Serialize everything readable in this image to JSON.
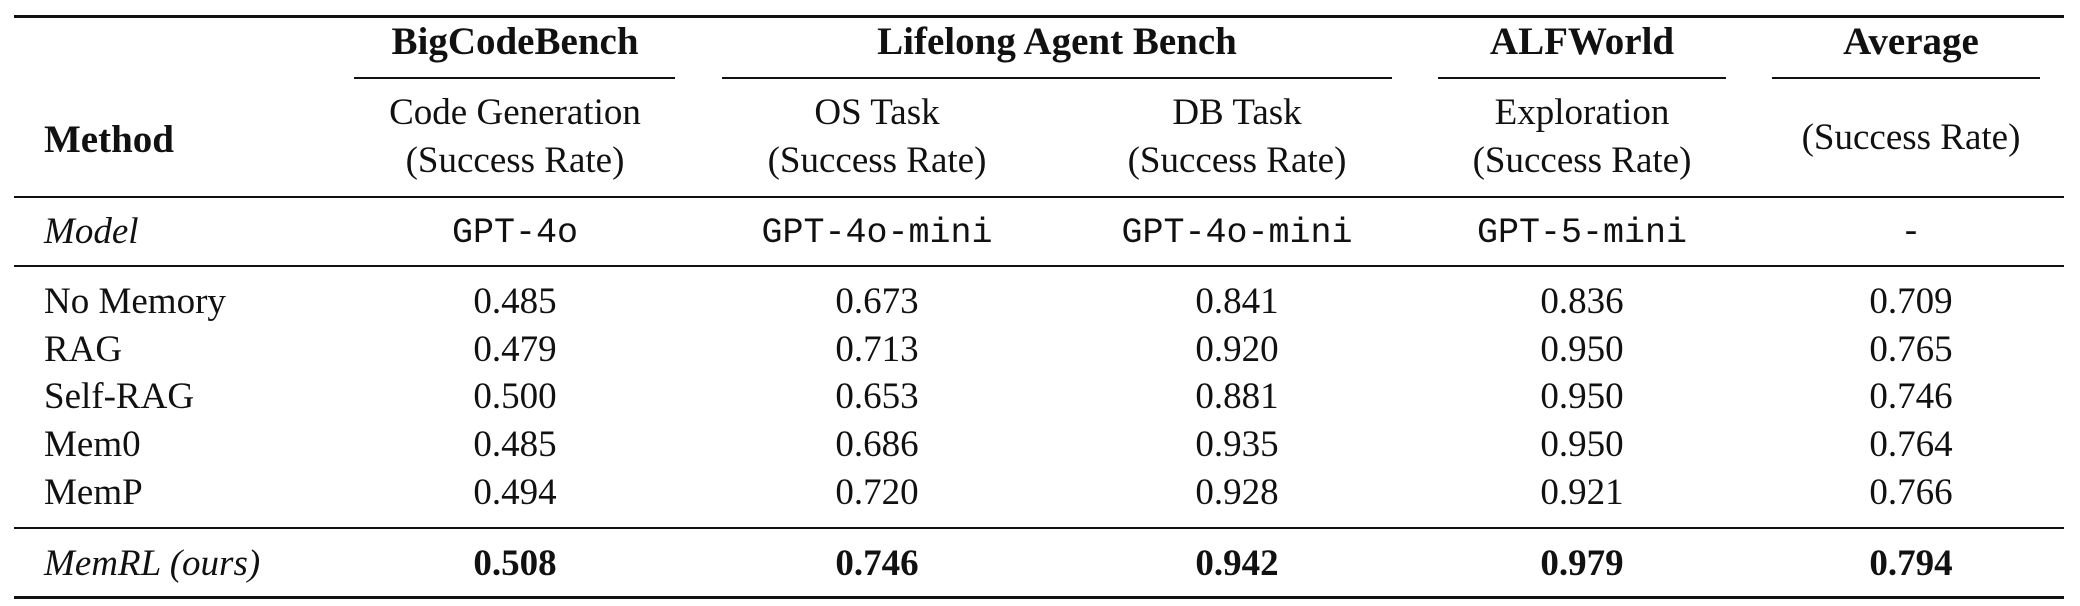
{
  "table": {
    "headers": {
      "method": "Method",
      "groups": [
        "BigCodeBench",
        "Lifelong Agent Bench",
        "ALFWorld",
        "Average"
      ],
      "subcols": [
        [
          "Code Generation",
          "(Success Rate)"
        ],
        [
          "OS Task",
          "(Success Rate)"
        ],
        [
          "DB Task",
          "(Success Rate)"
        ],
        [
          "Exploration",
          "(Success Rate)"
        ],
        [
          "",
          "(Success Rate)"
        ]
      ]
    },
    "model_row": {
      "label": "Model",
      "values": [
        "GPT-4o",
        "GPT-4o-mini",
        "GPT-4o-mini",
        "GPT-5-mini",
        "-"
      ]
    },
    "rows": [
      {
        "method": "No Memory",
        "values": [
          "0.485",
          "0.673",
          "0.841",
          "0.836",
          "0.709"
        ]
      },
      {
        "method": "RAG",
        "values": [
          "0.479",
          "0.713",
          "0.920",
          "0.950",
          "0.765"
        ]
      },
      {
        "method": "Self-RAG",
        "values": [
          "0.500",
          "0.653",
          "0.881",
          "0.950",
          "0.746"
        ]
      },
      {
        "method": "Mem0",
        "values": [
          "0.485",
          "0.686",
          "0.935",
          "0.950",
          "0.764"
        ]
      },
      {
        "method": "MemP",
        "values": [
          "0.494",
          "0.720",
          "0.928",
          "0.921",
          "0.766"
        ]
      }
    ],
    "ours_row": {
      "method": "MemRL (ours)",
      "values": [
        "0.508",
        "0.746",
        "0.942",
        "0.979",
        "0.794"
      ]
    }
  }
}
